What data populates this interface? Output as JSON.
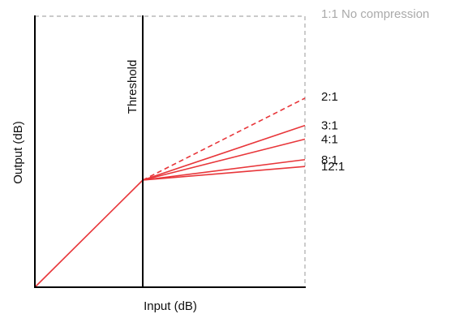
{
  "axes": {
    "x_label": "Input (dB)",
    "y_label": "Output (dB)"
  },
  "threshold": {
    "label": "Threshold"
  },
  "curves": [
    {
      "ratio": 1,
      "label": "1:1 No compression",
      "style": "gray-dashed"
    },
    {
      "ratio": 2,
      "label": "2:1",
      "style": "red-dashed"
    },
    {
      "ratio": 3,
      "label": "3:1",
      "style": "red-solid"
    },
    {
      "ratio": 4,
      "label": "4:1",
      "style": "red-solid"
    },
    {
      "ratio": 8,
      "label": "8:1",
      "style": "red-solid"
    },
    {
      "ratio": 12,
      "label": "12:1",
      "style": "red-solid"
    }
  ],
  "colors": {
    "curve": "#e8363a",
    "gray": "#aaaaaa",
    "axis": "#000000",
    "text": "#111111"
  }
}
